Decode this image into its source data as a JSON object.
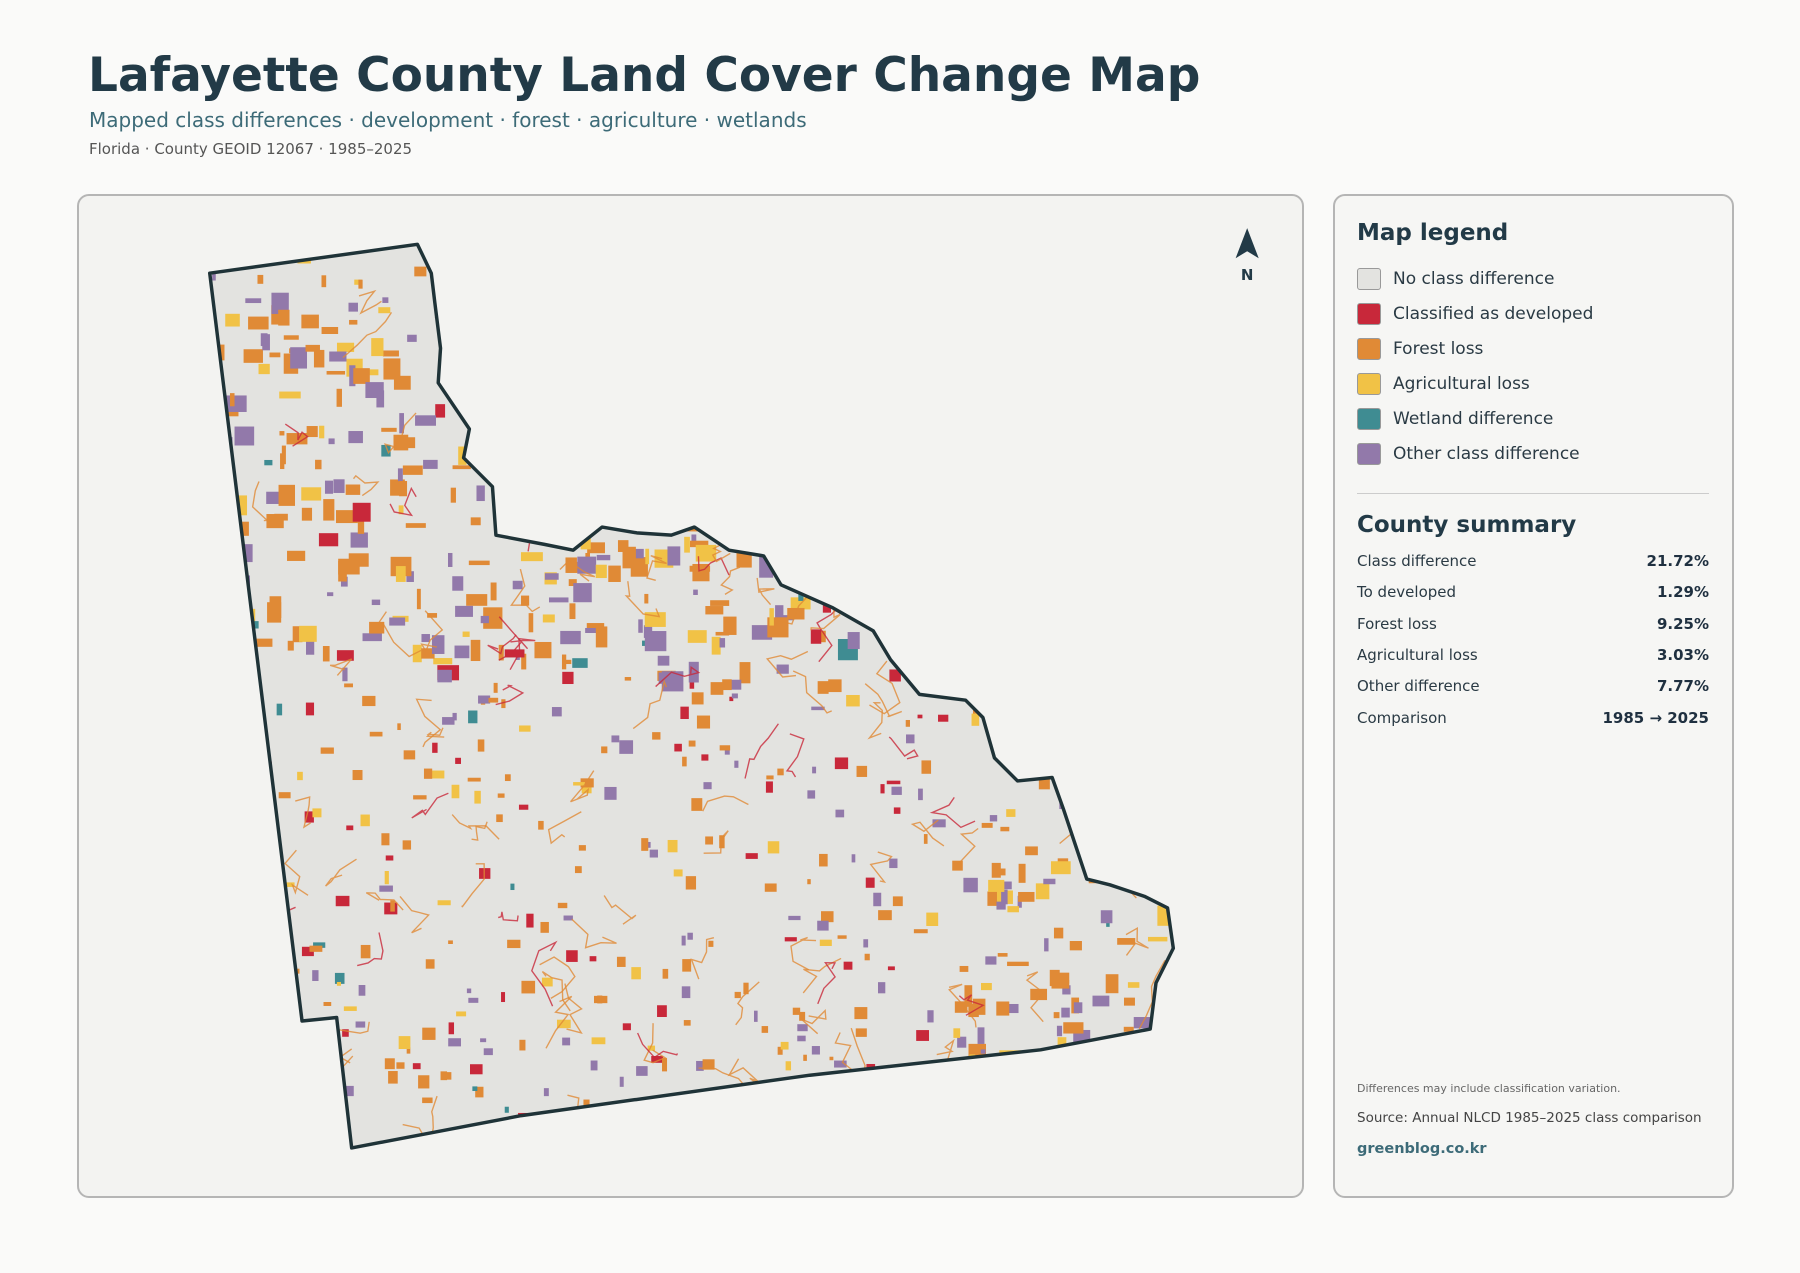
{
  "header": {
    "title": "Lafayette County Land Cover Change Map",
    "subtitle": "Mapped class differences · development · forest · agriculture · wetlands",
    "meta": "Florida · County GEOID 12067 · 1985–2025"
  },
  "map": {
    "north_label": "N"
  },
  "legend": {
    "title": "Map legend",
    "items": [
      {
        "label": "No class difference",
        "color": "#e3e3e0"
      },
      {
        "label": "Classified as developed",
        "color": "#c8283a"
      },
      {
        "label": "Forest loss",
        "color": "#e08a36"
      },
      {
        "label": "Agricultural loss",
        "color": "#f1c246"
      },
      {
        "label": "Wetland difference",
        "color": "#3f8c92"
      },
      {
        "label": "Other class difference",
        "color": "#9279aa"
      }
    ]
  },
  "summary": {
    "title": "County summary",
    "rows": [
      [
        "Class difference",
        "21.72%"
      ],
      [
        "To developed",
        "1.29%"
      ],
      [
        "Forest loss",
        "9.25%"
      ],
      [
        "Agricultural loss",
        "3.03%"
      ],
      [
        "Other difference",
        "7.77%"
      ],
      [
        "Comparison",
        "1985 → 2025"
      ]
    ]
  },
  "footer": {
    "note": "Differences may include classification variation.",
    "source": "Source: Annual NLCD 1985–2025 class comparison",
    "site": "greenblog.co.kr"
  }
}
